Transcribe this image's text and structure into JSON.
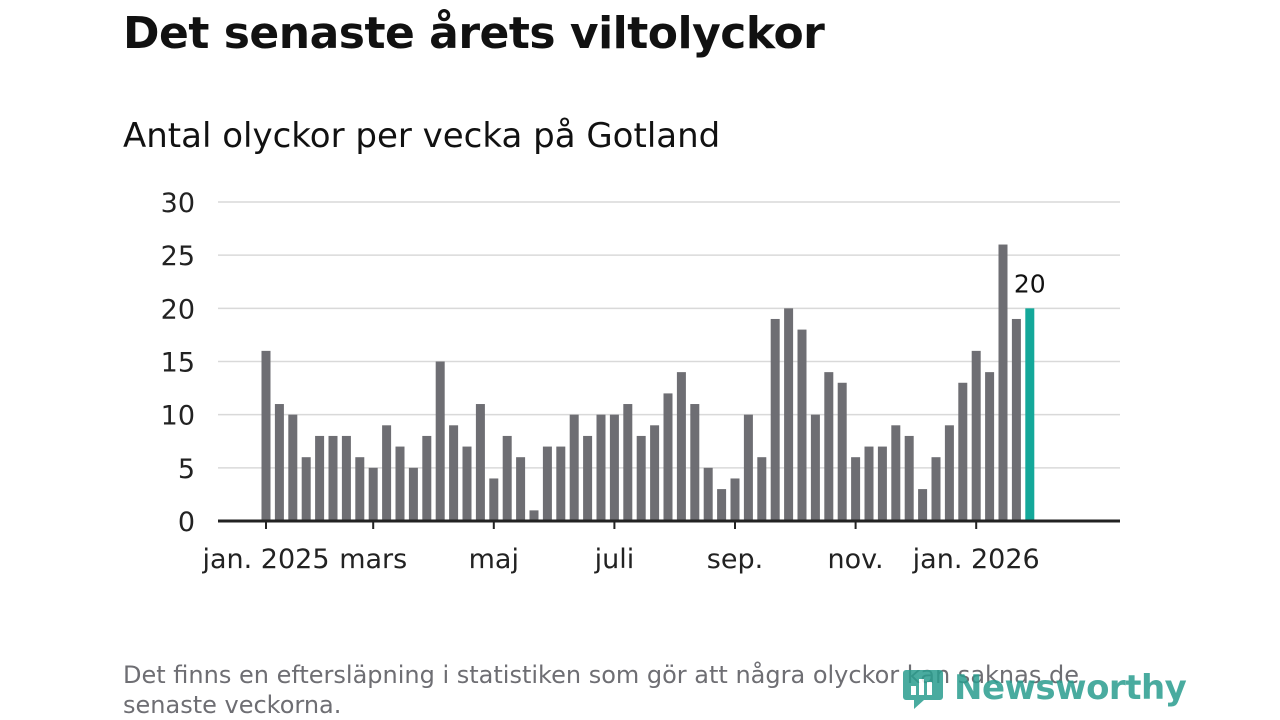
{
  "header": {
    "title": "Det senaste årets viltolyckor",
    "subtitle": "Antal olyckor per vecka på Gotland"
  },
  "footnote": "Det finns en eftersläpning i statistiken som gör att några olyckor kan saknas de senaste veckorna.",
  "logo": {
    "text": "Newsworthy"
  },
  "colors": {
    "bar": "#6e6e73",
    "highlight": "#14a89a",
    "grid": "#d9d9d9",
    "axis": "#222222",
    "logo": "#2a9d8f"
  },
  "chart_data": {
    "type": "bar",
    "title": "Antal olyckor per vecka på Gotland",
    "xlabel": "",
    "ylabel": "",
    "ylim": [
      0,
      30
    ],
    "yticks": [
      0,
      5,
      10,
      15,
      20,
      25,
      30
    ],
    "grid": true,
    "values": [
      16,
      11,
      10,
      6,
      8,
      8,
      8,
      6,
      5,
      9,
      7,
      5,
      8,
      15,
      9,
      7,
      11,
      4,
      8,
      6,
      1,
      7,
      7,
      10,
      8,
      10,
      10,
      11,
      8,
      9,
      12,
      14,
      11,
      5,
      3,
      4,
      10,
      6,
      19,
      20,
      18,
      10,
      14,
      13,
      6,
      7,
      7,
      9,
      8,
      3,
      6,
      9,
      13,
      16,
      14,
      26,
      19,
      20
    ],
    "highlight_index": 57,
    "highlight_label": "20",
    "x_ticks": [
      {
        "label": "jan. 2025",
        "week_index": 0
      },
      {
        "label": "mars",
        "week_index": 8
      },
      {
        "label": "maj",
        "week_index": 17
      },
      {
        "label": "juli",
        "week_index": 26
      },
      {
        "label": "sep.",
        "week_index": 35
      },
      {
        "label": "nov.",
        "week_index": 44
      },
      {
        "label": "jan. 2026",
        "week_index": 53
      }
    ]
  }
}
